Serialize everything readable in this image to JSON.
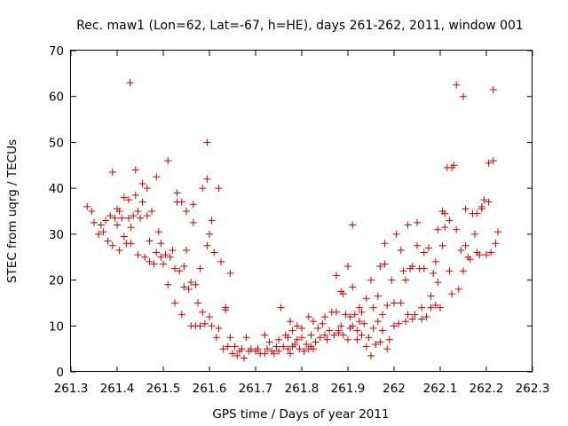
{
  "chart_data": {
    "type": "scatter",
    "title": "Rec. maw1 (Lon=62, Lat=-67, h=HE), days 261-262, 2011, window 001",
    "xlabel": "GPS time / Days of year 2011",
    "ylabel": "STEC from uqrg / TECUs",
    "xlim": [
      261.3,
      262.3
    ],
    "ylim": [
      0,
      70
    ],
    "xticks": [
      261.3,
      261.4,
      261.5,
      261.6,
      261.7,
      261.8,
      261.9,
      262,
      262.1,
      262.2,
      262.3
    ],
    "xtick_labels": [
      "261.3",
      "261.4",
      "261.5",
      "261.6",
      "261.7",
      "261.8",
      "261.9",
      "262",
      "262.1",
      "262.2",
      "262.3"
    ],
    "yticks": [
      0,
      10,
      20,
      30,
      40,
      50,
      60,
      70
    ],
    "ytick_labels": [
      "0",
      "10",
      "20",
      "30",
      "40",
      "50",
      "60",
      "70"
    ],
    "grid": false,
    "marker": "+",
    "color": "#cc0000",
    "series": [
      {
        "name": "STEC",
        "points": [
          [
            261.335,
            36
          ],
          [
            261.345,
            35
          ],
          [
            261.35,
            32.5
          ],
          [
            261.36,
            30
          ],
          [
            261.365,
            32
          ],
          [
            261.37,
            30.5
          ],
          [
            261.375,
            33
          ],
          [
            261.38,
            28.5
          ],
          [
            261.385,
            34
          ],
          [
            261.39,
            43.5
          ],
          [
            261.39,
            27.5
          ],
          [
            261.395,
            33.5
          ],
          [
            261.4,
            35.5
          ],
          [
            261.4,
            32
          ],
          [
            261.405,
            26.5
          ],
          [
            261.405,
            35
          ],
          [
            261.41,
            33.5
          ],
          [
            261.415,
            38
          ],
          [
            261.415,
            29.5
          ],
          [
            261.42,
            28
          ],
          [
            261.425,
            37.5
          ],
          [
            261.425,
            33.5
          ],
          [
            261.428,
            63
          ],
          [
            261.43,
            31.5
          ],
          [
            261.43,
            28
          ],
          [
            261.435,
            34
          ],
          [
            261.44,
            38.5
          ],
          [
            261.44,
            44
          ],
          [
            261.445,
            35
          ],
          [
            261.445,
            25.5
          ],
          [
            261.45,
            33.5
          ],
          [
            261.455,
            37
          ],
          [
            261.455,
            41
          ],
          [
            261.46,
            25
          ],
          [
            261.465,
            34
          ],
          [
            261.465,
            40
          ],
          [
            261.47,
            28.5
          ],
          [
            261.47,
            24
          ],
          [
            261.475,
            35
          ],
          [
            261.48,
            23.5
          ],
          [
            261.485,
            42.5
          ],
          [
            261.485,
            26
          ],
          [
            261.49,
            30.5
          ],
          [
            261.495,
            25
          ],
          [
            261.495,
            28
          ],
          [
            261.5,
            23.5
          ],
          [
            261.505,
            25.5
          ],
          [
            261.51,
            46
          ],
          [
            261.51,
            19
          ],
          [
            261.515,
            25
          ],
          [
            261.52,
            26.5
          ],
          [
            261.525,
            22.5
          ],
          [
            261.525,
            15
          ],
          [
            261.53,
            37
          ],
          [
            261.53,
            39
          ],
          [
            261.535,
            22
          ],
          [
            261.54,
            37
          ],
          [
            261.54,
            12.5
          ],
          [
            261.545,
            18.5
          ],
          [
            261.545,
            23
          ],
          [
            261.55,
            26.5
          ],
          [
            261.55,
            35
          ],
          [
            261.555,
            18
          ],
          [
            261.56,
            19.5
          ],
          [
            261.56,
            10
          ],
          [
            261.565,
            36.5
          ],
          [
            261.565,
            32.5
          ],
          [
            261.57,
            19
          ],
          [
            261.57,
            10
          ],
          [
            261.575,
            15
          ],
          [
            261.58,
            10
          ],
          [
            261.58,
            22.5
          ],
          [
            261.585,
            40
          ],
          [
            261.585,
            13
          ],
          [
            261.59,
            10.5
          ],
          [
            261.595,
            50
          ],
          [
            261.595,
            42
          ],
          [
            261.595,
            27.5
          ],
          [
            261.6,
            12
          ],
          [
            261.6,
            30
          ],
          [
            261.605,
            10
          ],
          [
            261.605,
            33
          ],
          [
            261.61,
            26
          ],
          [
            261.615,
            7.5
          ],
          [
            261.62,
            40
          ],
          [
            261.62,
            9.5
          ],
          [
            261.625,
            24
          ],
          [
            261.63,
            5
          ],
          [
            261.635,
            14
          ],
          [
            261.635,
            13.5
          ],
          [
            261.64,
            5.5
          ],
          [
            261.645,
            21.5
          ],
          [
            261.645,
            7.5
          ],
          [
            261.65,
            4
          ],
          [
            261.655,
            5.5
          ],
          [
            261.66,
            3.5
          ],
          [
            261.665,
            4.5
          ],
          [
            261.67,
            5
          ],
          [
            261.675,
            3
          ],
          [
            261.68,
            7.5
          ],
          [
            261.685,
            4.5
          ],
          [
            261.69,
            5
          ],
          [
            261.7,
            4.5
          ],
          [
            261.705,
            5
          ],
          [
            261.71,
            4
          ],
          [
            261.72,
            8
          ],
          [
            261.72,
            4
          ],
          [
            261.725,
            5
          ],
          [
            261.73,
            6.5
          ],
          [
            261.735,
            4.5
          ],
          [
            261.74,
            4
          ],
          [
            261.745,
            5.5
          ],
          [
            261.75,
            4.5
          ],
          [
            261.75,
            7
          ],
          [
            261.755,
            14
          ],
          [
            261.76,
            5.5
          ],
          [
            261.765,
            8
          ],
          [
            261.77,
            5
          ],
          [
            261.77,
            7.5
          ],
          [
            261.775,
            4
          ],
          [
            261.775,
            11
          ],
          [
            261.78,
            9
          ],
          [
            261.78,
            5.5
          ],
          [
            261.785,
            6
          ],
          [
            261.79,
            7
          ],
          [
            261.79,
            10
          ],
          [
            261.795,
            5
          ],
          [
            261.8,
            7.5
          ],
          [
            261.8,
            9.5
          ],
          [
            261.805,
            4.5
          ],
          [
            261.81,
            6
          ],
          [
            261.815,
            5
          ],
          [
            261.815,
            12
          ],
          [
            261.82,
            5.5
          ],
          [
            261.82,
            8
          ],
          [
            261.825,
            11
          ],
          [
            261.825,
            5
          ],
          [
            261.83,
            6.5
          ],
          [
            261.835,
            9.5
          ],
          [
            261.84,
            7.5
          ],
          [
            261.845,
            10.5
          ],
          [
            261.85,
            8
          ],
          [
            261.85,
            12
          ],
          [
            261.855,
            7
          ],
          [
            261.86,
            9
          ],
          [
            261.865,
            13
          ],
          [
            261.87,
            8
          ],
          [
            261.875,
            21
          ],
          [
            261.875,
            13
          ],
          [
            261.88,
            8.5
          ],
          [
            261.88,
            9
          ],
          [
            261.885,
            10
          ],
          [
            261.885,
            17.5
          ],
          [
            261.89,
            8
          ],
          [
            261.89,
            17
          ],
          [
            261.895,
            12.5
          ],
          [
            261.9,
            23
          ],
          [
            261.9,
            7
          ],
          [
            261.905,
            9.5
          ],
          [
            261.905,
            12
          ],
          [
            261.91,
            32
          ],
          [
            261.91,
            18.5
          ],
          [
            261.91,
            10
          ],
          [
            261.915,
            12.5
          ],
          [
            261.92,
            7
          ],
          [
            261.92,
            9
          ],
          [
            261.925,
            11
          ],
          [
            261.925,
            14
          ],
          [
            261.93,
            8
          ],
          [
            261.93,
            13
          ],
          [
            261.935,
            10.5
          ],
          [
            261.94,
            16
          ],
          [
            261.94,
            5.5
          ],
          [
            261.945,
            7.5
          ],
          [
            261.95,
            20
          ],
          [
            261.95,
            3.5
          ],
          [
            261.955,
            14
          ],
          [
            261.955,
            9.5
          ],
          [
            261.96,
            6
          ],
          [
            261.965,
            16.5
          ],
          [
            261.965,
            11
          ],
          [
            261.97,
            6.5
          ],
          [
            261.97,
            23
          ],
          [
            261.975,
            12.5
          ],
          [
            261.975,
            9
          ],
          [
            261.98,
            28
          ],
          [
            261.98,
            23.5
          ],
          [
            261.985,
            5
          ],
          [
            261.985,
            14.5
          ],
          [
            261.99,
            7
          ],
          [
            261.995,
            20
          ],
          [
            262,
            15
          ],
          [
            262,
            10
          ],
          [
            262.005,
            30
          ],
          [
            262.01,
            10.5
          ],
          [
            262.015,
            15
          ],
          [
            262.015,
            26.5
          ],
          [
            262.02,
            22
          ],
          [
            262.025,
            11
          ],
          [
            262.025,
            20
          ],
          [
            262.03,
            32
          ],
          [
            262.03,
            12.5
          ],
          [
            262.035,
            22.5
          ],
          [
            262.04,
            11.5
          ],
          [
            262.04,
            23
          ],
          [
            262.045,
            12.5
          ],
          [
            262.05,
            32.5
          ],
          [
            262.05,
            27.5
          ],
          [
            262.055,
            22.5
          ],
          [
            262.06,
            11.5
          ],
          [
            262.06,
            14
          ],
          [
            262.065,
            26
          ],
          [
            262.065,
            22.5
          ],
          [
            262.07,
            12
          ],
          [
            262.075,
            27
          ],
          [
            262.08,
            16.5
          ],
          [
            262.08,
            14
          ],
          [
            262.085,
            21.5
          ],
          [
            262.09,
            14.5
          ],
          [
            262.09,
            24
          ],
          [
            262.095,
            31
          ],
          [
            262.095,
            19.5
          ],
          [
            262.1,
            14
          ],
          [
            262.105,
            35
          ],
          [
            262.105,
            27.5
          ],
          [
            262.11,
            34.5
          ],
          [
            262.11,
            31.5
          ],
          [
            262.115,
            44.5
          ],
          [
            262.12,
            22
          ],
          [
            262.12,
            33
          ],
          [
            262.125,
            44.5
          ],
          [
            262.125,
            17
          ],
          [
            262.13,
            45
          ],
          [
            262.135,
            62.5
          ],
          [
            262.135,
            31
          ],
          [
            262.14,
            18
          ],
          [
            262.145,
            26.5
          ],
          [
            262.15,
            60
          ],
          [
            262.15,
            22
          ],
          [
            262.155,
            27.5
          ],
          [
            262.155,
            35.5
          ],
          [
            262.16,
            25
          ],
          [
            262.165,
            24.5
          ],
          [
            262.17,
            34.5
          ],
          [
            262.175,
            30
          ],
          [
            262.18,
            26
          ],
          [
            262.18,
            34.5
          ],
          [
            262.185,
            25.5
          ],
          [
            262.19,
            36
          ],
          [
            262.19,
            35.5
          ],
          [
            262.195,
            37.5
          ],
          [
            262.2,
            25.5
          ],
          [
            262.205,
            37
          ],
          [
            262.205,
            45.5
          ],
          [
            262.21,
            26
          ],
          [
            262.215,
            61.5
          ],
          [
            262.215,
            46
          ],
          [
            262.22,
            28
          ],
          [
            262.225,
            30.5
          ]
        ]
      }
    ]
  }
}
